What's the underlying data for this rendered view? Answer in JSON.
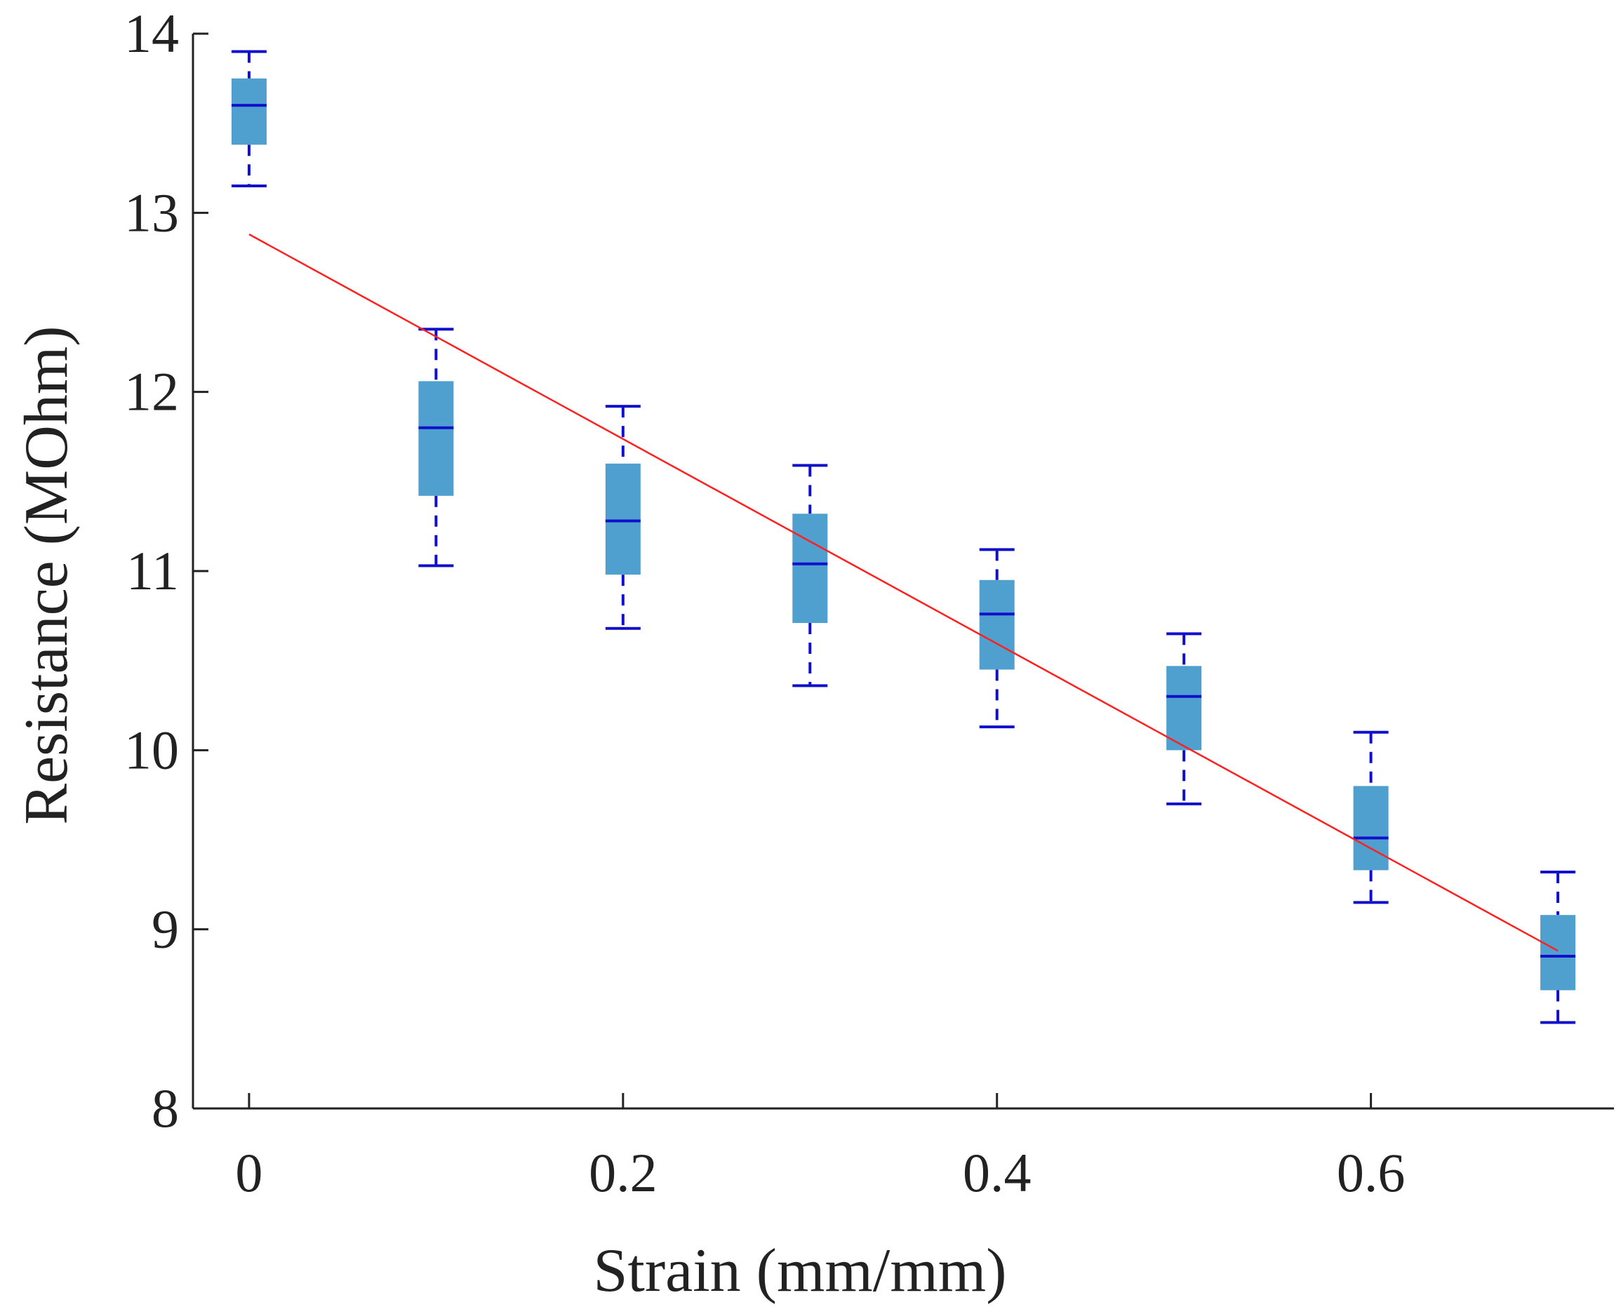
{
  "chart_data": {
    "type": "box",
    "title": "",
    "xlabel": "Strain (mm/mm)",
    "ylabel": "Resistance (MOhm)",
    "xlim": [
      -0.03,
      0.73
    ],
    "ylim": [
      8,
      14
    ],
    "xticks": [
      0,
      0.2,
      0.4,
      0.6
    ],
    "xtick_labels": [
      "0",
      "0.2",
      "0.4",
      "0.6"
    ],
    "yticks": [
      8,
      9,
      10,
      11,
      12,
      13,
      14
    ],
    "ytick_labels": [
      "8",
      "9",
      "10",
      "11",
      "12",
      "13",
      "14"
    ],
    "grid": false,
    "box_color": "#4f9fcf",
    "whisker_color": "#1010cc",
    "fit_color": "#ff2020",
    "boxes": [
      {
        "x": 0.0,
        "whisker_low": 13.15,
        "q1": 13.38,
        "median": 13.6,
        "q3": 13.75,
        "whisker_high": 13.9
      },
      {
        "x": 0.1,
        "whisker_low": 11.03,
        "q1": 11.42,
        "median": 11.8,
        "q3": 12.06,
        "whisker_high": 12.35
      },
      {
        "x": 0.2,
        "whisker_low": 10.68,
        "q1": 10.98,
        "median": 11.28,
        "q3": 11.6,
        "whisker_high": 11.92
      },
      {
        "x": 0.3,
        "whisker_low": 10.36,
        "q1": 10.71,
        "median": 11.04,
        "q3": 11.32,
        "whisker_high": 11.59
      },
      {
        "x": 0.4,
        "whisker_low": 10.13,
        "q1": 10.45,
        "median": 10.76,
        "q3": 10.95,
        "whisker_high": 11.12
      },
      {
        "x": 0.5,
        "whisker_low": 9.7,
        "q1": 10.0,
        "median": 10.3,
        "q3": 10.47,
        "whisker_high": 10.65
      },
      {
        "x": 0.6,
        "whisker_low": 9.15,
        "q1": 9.33,
        "median": 9.51,
        "q3": 9.8,
        "whisker_high": 10.1
      },
      {
        "x": 0.7,
        "whisker_low": 8.48,
        "q1": 8.66,
        "median": 8.85,
        "q3": 9.08,
        "whisker_high": 9.32
      }
    ],
    "fit_line": {
      "x": [
        0.0,
        0.7
      ],
      "y": [
        12.88,
        8.88
      ]
    }
  }
}
